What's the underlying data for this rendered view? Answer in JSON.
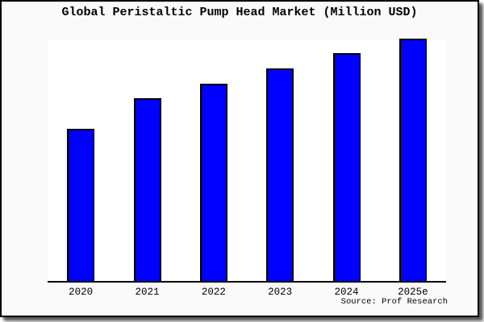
{
  "title": "Global Peristaltic Pump Head Market (Million USD)",
  "source": "Source: Prof Research",
  "colors": {
    "bar_fill": "#0000ff",
    "bar_stroke": "#000000",
    "frame_background": "#fafafa",
    "plot_background": "#ffffff",
    "axis": "#000000",
    "border": "#000000"
  },
  "chart_data": {
    "type": "bar",
    "title": "Global Peristaltic Pump Head Market (Million USD)",
    "categories": [
      "2020",
      "2021",
      "2022",
      "2023",
      "2024",
      "2025e"
    ],
    "values": [
      62.7,
      75.3,
      81.5,
      87.7,
      94.0,
      100.0
    ],
    "value_note": "y-axis unlabeled in source image; values are relative units (% of tallest 2025e bar)",
    "xlabel": "",
    "ylabel": "",
    "ylim": [
      0,
      100
    ],
    "grid": false,
    "legend": false,
    "bar_color": "#0000ff",
    "source": "Source: Prof Research"
  }
}
